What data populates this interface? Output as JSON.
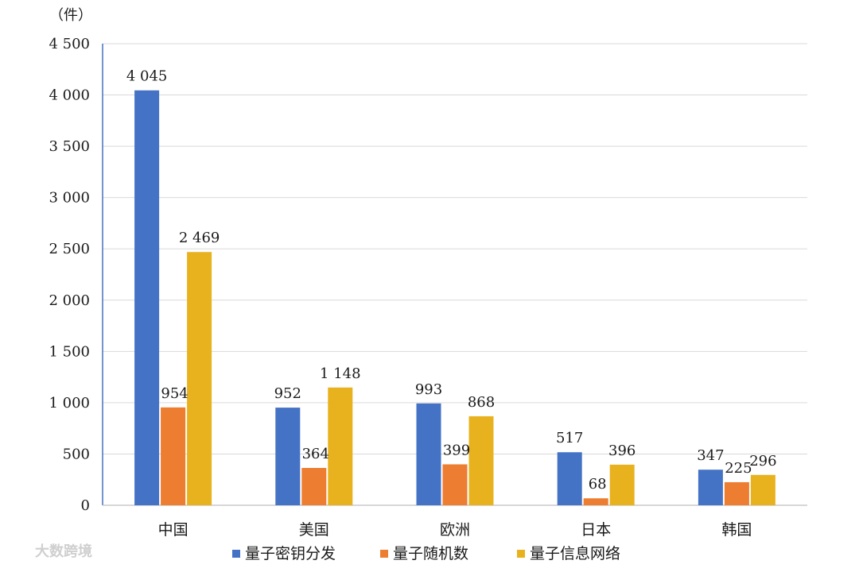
{
  "chart_data": {
    "type": "bar",
    "unit_label": "（件）",
    "categories": [
      "中国",
      "美国",
      "欧洲",
      "日本",
      "韩国"
    ],
    "series": [
      {
        "name": "量子密钥分发",
        "color": "#4472C4",
        "values": [
          4045,
          952,
          993,
          517,
          347
        ],
        "labels": [
          "4 045",
          "952",
          "993",
          "517",
          "347"
        ]
      },
      {
        "name": "量子随机数",
        "color": "#ED7D31",
        "values": [
          954,
          364,
          399,
          68,
          225
        ],
        "labels": [
          "954",
          "364",
          "399",
          "68",
          "225"
        ]
      },
      {
        "name": "量子信息网络",
        "color": "#E8B21E",
        "values": [
          2469,
          1148,
          868,
          396,
          296
        ],
        "labels": [
          "2 469",
          "1 148",
          "868",
          "396",
          "296"
        ]
      }
    ],
    "ylim": [
      0,
      4500
    ],
    "yticks": [
      0,
      500,
      1000,
      1500,
      2000,
      2500,
      3000,
      3500,
      4000,
      4500
    ],
    "ytick_labels": [
      "0",
      "500",
      "1 000",
      "1 500",
      "2 000",
      "2 500",
      "3 000",
      "3 500",
      "4 000",
      "4 500"
    ],
    "grid": true,
    "legend_position": "bottom",
    "title": "",
    "xlabel": "",
    "ylabel": ""
  },
  "watermark": {
    "text": "大数跨境"
  }
}
